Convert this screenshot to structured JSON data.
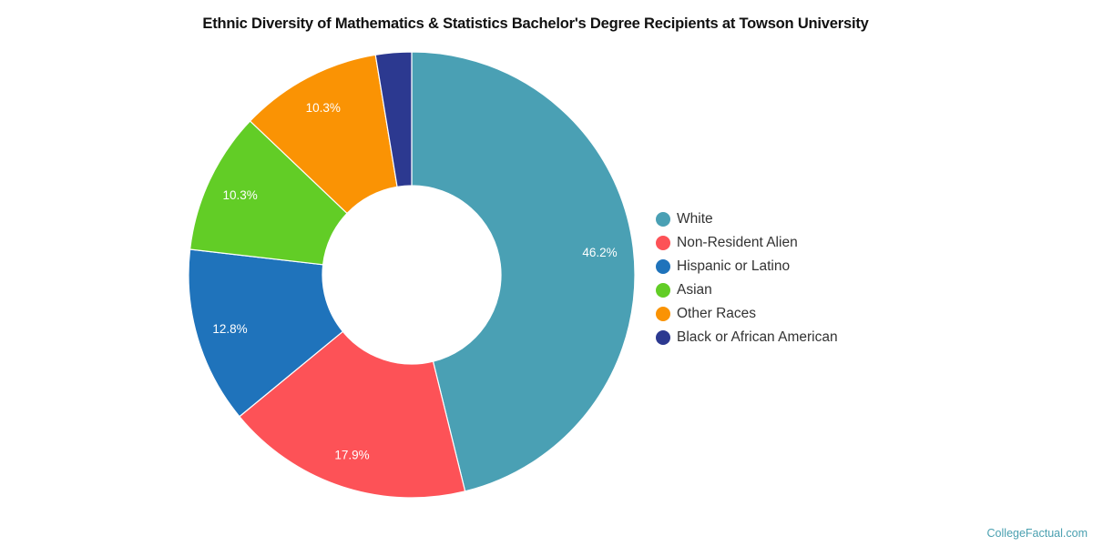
{
  "chart_data": {
    "type": "pie",
    "subtype": "donut",
    "title": "Ethnic Diversity of Mathematics & Statistics Bachelor's Degree Recipients at Towson University",
    "categories": [
      "White",
      "Non-Resident Alien",
      "Hispanic or Latino",
      "Asian",
      "Other Races",
      "Black or African American"
    ],
    "values": [
      46.2,
      17.9,
      12.8,
      10.3,
      10.3,
      2.6
    ],
    "labels": [
      "46.2%",
      "17.9%",
      "12.8%",
      "10.3%",
      "10.3%",
      ""
    ],
    "colors": [
      "#4aa0b4",
      "#fd5257",
      "#1f73bb",
      "#62cd26",
      "#fa9304",
      "#2c3990"
    ],
    "legend_position": "right",
    "unit": "%"
  },
  "legend": {
    "items": [
      {
        "label": "White",
        "color": "#4aa0b4"
      },
      {
        "label": "Non-Resident Alien",
        "color": "#fd5257"
      },
      {
        "label": "Hispanic or Latino",
        "color": "#1f73bb"
      },
      {
        "label": "Asian",
        "color": "#62cd26"
      },
      {
        "label": "Other Races",
        "color": "#fa9304"
      },
      {
        "label": "Black or African American",
        "color": "#2c3990"
      }
    ]
  },
  "credit": "CollegeFactual.com"
}
